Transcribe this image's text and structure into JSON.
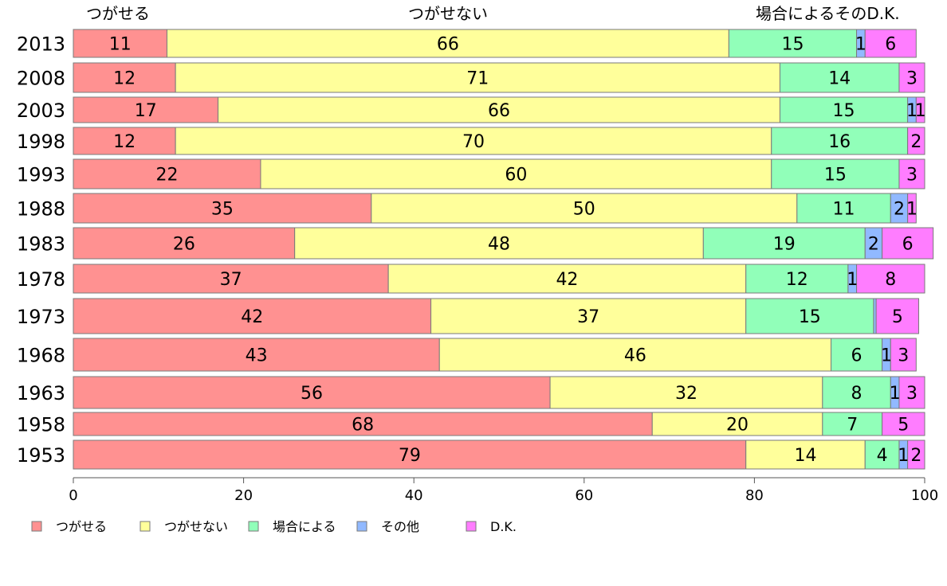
{
  "chart_data": {
    "type": "bar",
    "orientation": "horizontal",
    "stacked": true,
    "header_labels": [
      "つがせる",
      "つがせない",
      "場合によるそのD.K."
    ],
    "categories": [
      "2013",
      "2008",
      "2003",
      "1998",
      "1993",
      "1988",
      "1983",
      "1978",
      "1973",
      "1968",
      "1963",
      "1958",
      "1953"
    ],
    "series": [
      {
        "name": "つがせる",
        "color": "#ff9191",
        "values": [
          11,
          12,
          17,
          12,
          22,
          35,
          26,
          37,
          42,
          43,
          56,
          68,
          79
        ]
      },
      {
        "name": "つがせない",
        "color": "#ffff9b",
        "values": [
          66,
          71,
          66,
          70,
          60,
          50,
          48,
          42,
          37,
          46,
          32,
          20,
          14
        ]
      },
      {
        "name": "場合による",
        "color": "#91ffb9",
        "values": [
          15,
          14,
          15,
          16,
          15,
          11,
          19,
          12,
          15,
          6,
          8,
          7,
          4
        ]
      },
      {
        "name": "その他",
        "color": "#91b9ff",
        "values": [
          1,
          0,
          1,
          0,
          0,
          2,
          2,
          1,
          0.3,
          1,
          1,
          0,
          1
        ]
      },
      {
        "name": "D.K.",
        "color": "#ff7dff",
        "values": [
          6,
          3,
          1,
          2,
          3,
          1,
          6,
          8,
          5,
          3,
          3,
          5,
          2
        ]
      }
    ],
    "data_labels": [
      [
        "11",
        "66",
        "15",
        "1",
        "6"
      ],
      [
        "12",
        "71",
        "14",
        "",
        "3"
      ],
      [
        "17",
        "66",
        "15",
        "1",
        "1"
      ],
      [
        "12",
        "70",
        "16",
        "",
        "2"
      ],
      [
        "22",
        "60",
        "15",
        "",
        "3"
      ],
      [
        "35",
        "50",
        "11",
        "2",
        "1"
      ],
      [
        "26",
        "48",
        "19",
        "2",
        "6"
      ],
      [
        "37",
        "42",
        "12",
        "1",
        "8"
      ],
      [
        "42",
        "37",
        "15",
        "",
        "5"
      ],
      [
        "43",
        "46",
        "6",
        "1",
        "3"
      ],
      [
        "56",
        "32",
        "8",
        "1",
        "3"
      ],
      [
        "68",
        "20",
        "7",
        "",
        "5"
      ],
      [
        "79",
        "14",
        "4",
        "1",
        "2"
      ]
    ],
    "xlim": [
      0,
      100
    ],
    "xticks": [
      "0",
      "20",
      "40",
      "60",
      "80",
      "100"
    ],
    "legend_position": "bottom-left"
  }
}
